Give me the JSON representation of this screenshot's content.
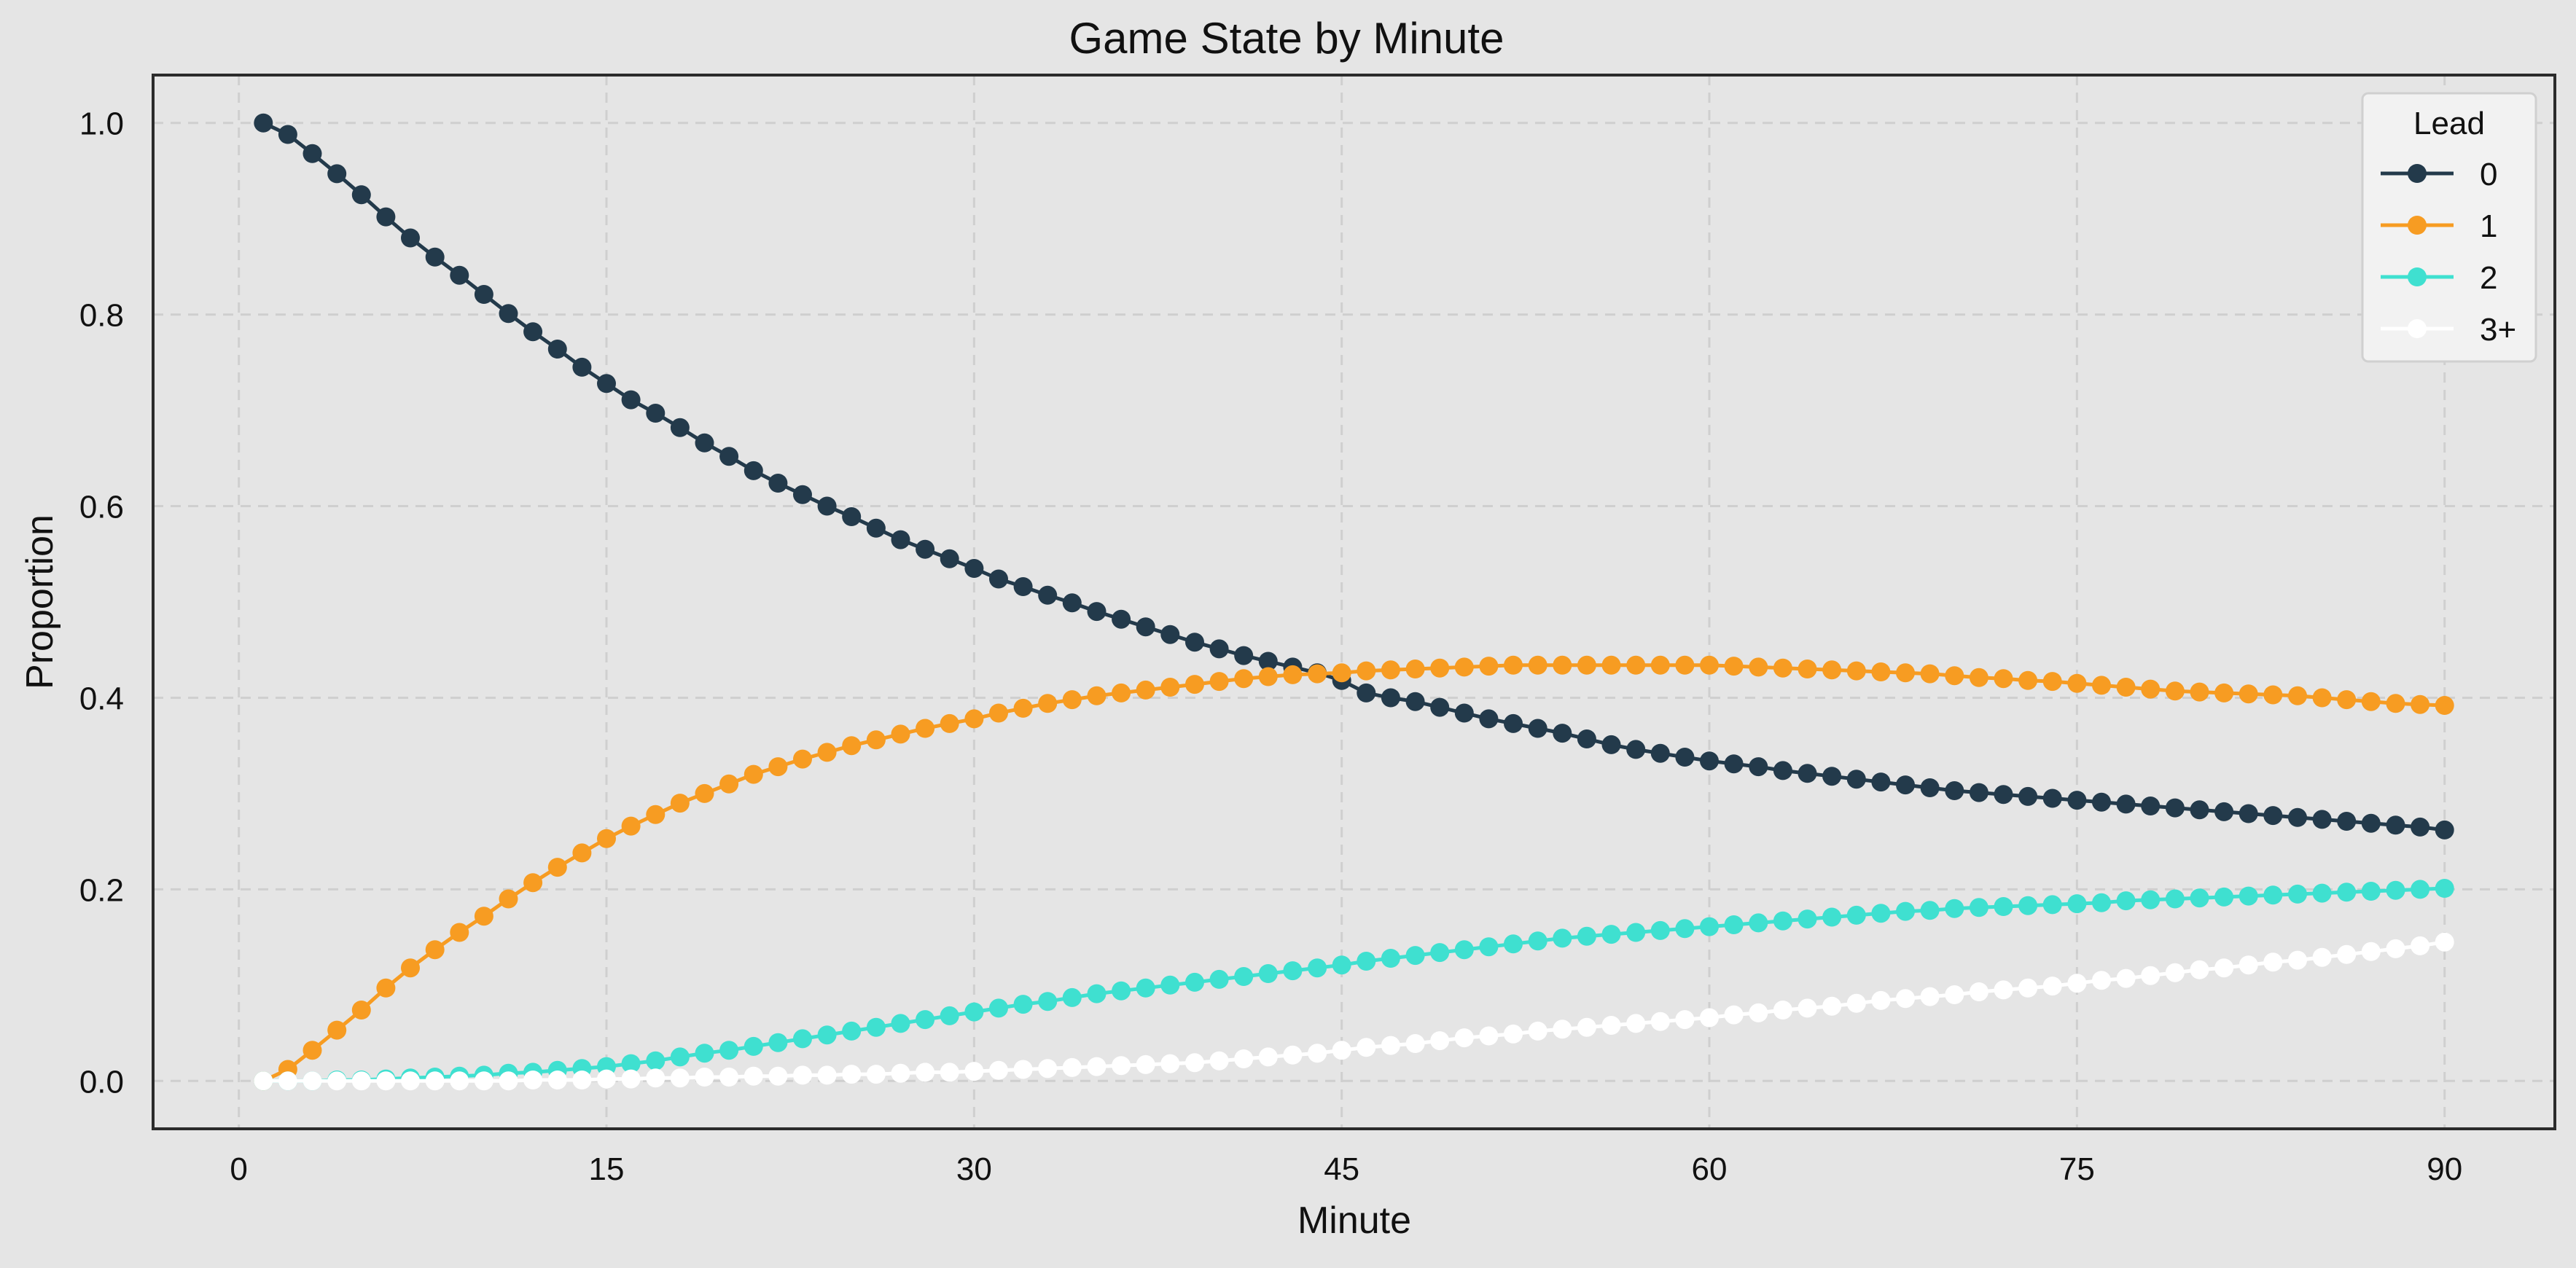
{
  "chart_data": {
    "type": "line",
    "title": "Game State by Minute",
    "xlabel": "Minute",
    "ylabel": "Proportion",
    "xlim": [
      -3.5,
      94.5
    ],
    "ylim": [
      -0.05,
      1.05
    ],
    "xticks": [
      0,
      15,
      30,
      45,
      60,
      75,
      90
    ],
    "yticks": [
      0.0,
      0.2,
      0.4,
      0.6,
      0.8,
      1.0
    ],
    "grid": true,
    "legend": {
      "title": "Lead",
      "placement": "top-right"
    },
    "x": [
      1,
      2,
      3,
      4,
      5,
      6,
      7,
      8,
      9,
      10,
      11,
      12,
      13,
      14,
      15,
      16,
      17,
      18,
      19,
      20,
      21,
      22,
      23,
      24,
      25,
      26,
      27,
      28,
      29,
      30,
      31,
      32,
      33,
      34,
      35,
      36,
      37,
      38,
      39,
      40,
      41,
      42,
      43,
      44,
      45,
      46,
      47,
      48,
      49,
      50,
      51,
      52,
      53,
      54,
      55,
      56,
      57,
      58,
      59,
      60,
      61,
      62,
      63,
      64,
      65,
      66,
      67,
      68,
      69,
      70,
      71,
      72,
      73,
      74,
      75,
      76,
      77,
      78,
      79,
      80,
      81,
      82,
      83,
      84,
      85,
      86,
      87,
      88,
      89,
      90
    ],
    "series": [
      {
        "name": "0",
        "color": "#233a4b",
        "values": [
          1.0,
          0.988,
          0.968,
          0.947,
          0.925,
          0.902,
          0.88,
          0.86,
          0.841,
          0.821,
          0.801,
          0.782,
          0.764,
          0.745,
          0.728,
          0.711,
          0.697,
          0.682,
          0.666,
          0.652,
          0.637,
          0.624,
          0.612,
          0.6,
          0.589,
          0.577,
          0.565,
          0.555,
          0.545,
          0.535,
          0.524,
          0.516,
          0.507,
          0.499,
          0.49,
          0.482,
          0.474,
          0.466,
          0.458,
          0.451,
          0.444,
          0.438,
          0.432,
          0.426,
          0.418,
          0.405,
          0.4,
          0.396,
          0.39,
          0.384,
          0.378,
          0.373,
          0.368,
          0.363,
          0.357,
          0.351,
          0.346,
          0.342,
          0.338,
          0.334,
          0.331,
          0.328,
          0.324,
          0.321,
          0.318,
          0.315,
          0.312,
          0.309,
          0.306,
          0.303,
          0.301,
          0.299,
          0.297,
          0.295,
          0.293,
          0.291,
          0.289,
          0.287,
          0.285,
          0.283,
          0.281,
          0.279,
          0.277,
          0.275,
          0.273,
          0.271,
          0.269,
          0.267,
          0.265,
          0.262
        ]
      },
      {
        "name": "1",
        "color": "#f79c22",
        "values": [
          0.0,
          0.012,
          0.032,
          0.053,
          0.074,
          0.097,
          0.118,
          0.137,
          0.155,
          0.172,
          0.19,
          0.207,
          0.223,
          0.238,
          0.253,
          0.266,
          0.278,
          0.29,
          0.3,
          0.31,
          0.32,
          0.328,
          0.336,
          0.343,
          0.35,
          0.356,
          0.362,
          0.368,
          0.373,
          0.378,
          0.384,
          0.389,
          0.394,
          0.398,
          0.402,
          0.405,
          0.408,
          0.411,
          0.414,
          0.417,
          0.42,
          0.422,
          0.424,
          0.425,
          0.426,
          0.428,
          0.429,
          0.43,
          0.431,
          0.432,
          0.433,
          0.434,
          0.434,
          0.434,
          0.434,
          0.434,
          0.434,
          0.434,
          0.434,
          0.434,
          0.433,
          0.432,
          0.431,
          0.43,
          0.429,
          0.428,
          0.427,
          0.426,
          0.425,
          0.423,
          0.421,
          0.42,
          0.418,
          0.417,
          0.415,
          0.413,
          0.411,
          0.409,
          0.407,
          0.406,
          0.405,
          0.404,
          0.403,
          0.402,
          0.4,
          0.398,
          0.396,
          0.394,
          0.393,
          0.392
        ]
      },
      {
        "name": "2",
        "color": "#3fe0d0",
        "values": [
          0.0,
          0.0,
          0.0,
          0.001,
          0.001,
          0.002,
          0.003,
          0.004,
          0.005,
          0.006,
          0.008,
          0.009,
          0.011,
          0.013,
          0.015,
          0.018,
          0.021,
          0.025,
          0.029,
          0.032,
          0.036,
          0.04,
          0.044,
          0.048,
          0.052,
          0.056,
          0.06,
          0.064,
          0.068,
          0.072,
          0.076,
          0.08,
          0.083,
          0.087,
          0.091,
          0.094,
          0.097,
          0.1,
          0.103,
          0.106,
          0.109,
          0.112,
          0.115,
          0.118,
          0.121,
          0.125,
          0.128,
          0.131,
          0.134,
          0.137,
          0.14,
          0.143,
          0.146,
          0.149,
          0.151,
          0.153,
          0.155,
          0.157,
          0.159,
          0.161,
          0.163,
          0.165,
          0.167,
          0.169,
          0.171,
          0.173,
          0.175,
          0.177,
          0.178,
          0.18,
          0.181,
          0.182,
          0.183,
          0.184,
          0.185,
          0.186,
          0.188,
          0.189,
          0.19,
          0.191,
          0.192,
          0.193,
          0.194,
          0.195,
          0.196,
          0.197,
          0.198,
          0.199,
          0.2,
          0.201
        ]
      },
      {
        "name": "3+",
        "color": "#ffffff",
        "values": [
          0.0,
          0.0,
          0.0,
          0.0,
          0.0,
          0.0,
          0.0,
          0.0,
          0.0,
          0.0,
          0.0,
          0.001,
          0.001,
          0.001,
          0.002,
          0.002,
          0.003,
          0.003,
          0.004,
          0.004,
          0.005,
          0.005,
          0.006,
          0.006,
          0.007,
          0.007,
          0.008,
          0.009,
          0.009,
          0.01,
          0.011,
          0.012,
          0.013,
          0.014,
          0.015,
          0.016,
          0.017,
          0.018,
          0.019,
          0.021,
          0.023,
          0.025,
          0.027,
          0.029,
          0.032,
          0.035,
          0.037,
          0.039,
          0.042,
          0.045,
          0.047,
          0.049,
          0.052,
          0.054,
          0.056,
          0.058,
          0.06,
          0.062,
          0.064,
          0.066,
          0.069,
          0.071,
          0.074,
          0.076,
          0.078,
          0.081,
          0.084,
          0.086,
          0.088,
          0.09,
          0.093,
          0.095,
          0.097,
          0.099,
          0.102,
          0.105,
          0.107,
          0.11,
          0.113,
          0.116,
          0.118,
          0.121,
          0.124,
          0.126,
          0.129,
          0.132,
          0.135,
          0.138,
          0.141,
          0.145
        ]
      }
    ]
  }
}
